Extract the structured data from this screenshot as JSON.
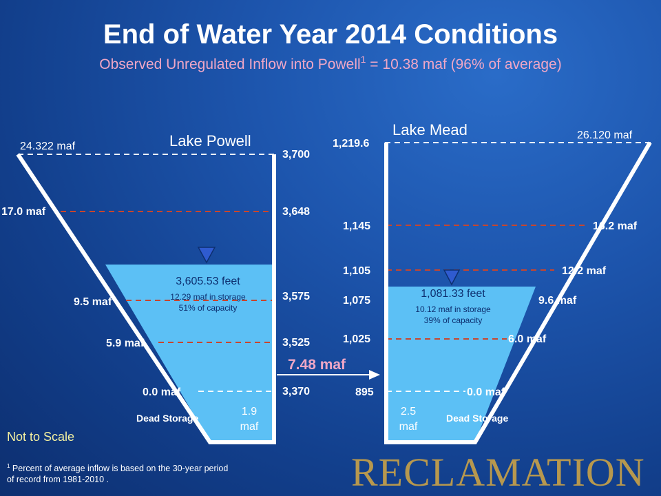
{
  "header": {
    "title": "End of Water Year 2014 Conditions",
    "subtitle_main": "Observed Unregulated Inflow into Powell",
    "subtitle_sup": "1",
    "subtitle_tail": " = 10.38 maf (96% of average)"
  },
  "powell": {
    "name": "Lake Powell",
    "top_capacity": "24.322 maf",
    "elevations": [
      "3,700",
      "3,648",
      "3,575",
      "3,525",
      "3,370"
    ],
    "volumes": [
      "17.0 maf",
      "9.5 maf",
      "5.9 maf",
      "0.0 maf"
    ],
    "current_elevation": "3,605.53 feet",
    "current_storage": "12.29 maf in storage",
    "current_percent": "51% of capacity",
    "dead_storage_label": "Dead Storage",
    "dead_storage_value_1": "1.9",
    "dead_storage_value_2": "maf"
  },
  "mead": {
    "name": "Lake Mead",
    "top_capacity": "26.120 maf",
    "elevations": [
      "1,219.6",
      "1,145",
      "1,105",
      "1,075",
      "1,025",
      "895"
    ],
    "volumes": [
      "16.2 maf",
      "12.2 maf",
      "9.6 maf",
      "6.0 maf",
      "0.0 maf"
    ],
    "current_elevation": "1,081.33 feet",
    "current_storage": "10.12 maf in storage",
    "current_percent": "39% of capacity",
    "dead_storage_label": "Dead Storage",
    "dead_storage_value_1": "2.5",
    "dead_storage_value_2": "maf"
  },
  "release": {
    "value": "7.48 maf"
  },
  "footer": {
    "not_to_scale": "Not to Scale",
    "footnote_sup": "1",
    "footnote_line1": " Percent of average inflow is based on the 30-year period",
    "footnote_line2": "of record from 1981-2010 .",
    "brand": "RECLAMATION"
  },
  "colors": {
    "water": "#5cc0f5",
    "level_line": "#c8452d",
    "outline": "#ffffff",
    "indicator": "#2f5bd0",
    "brand": "#c9a248"
  }
}
